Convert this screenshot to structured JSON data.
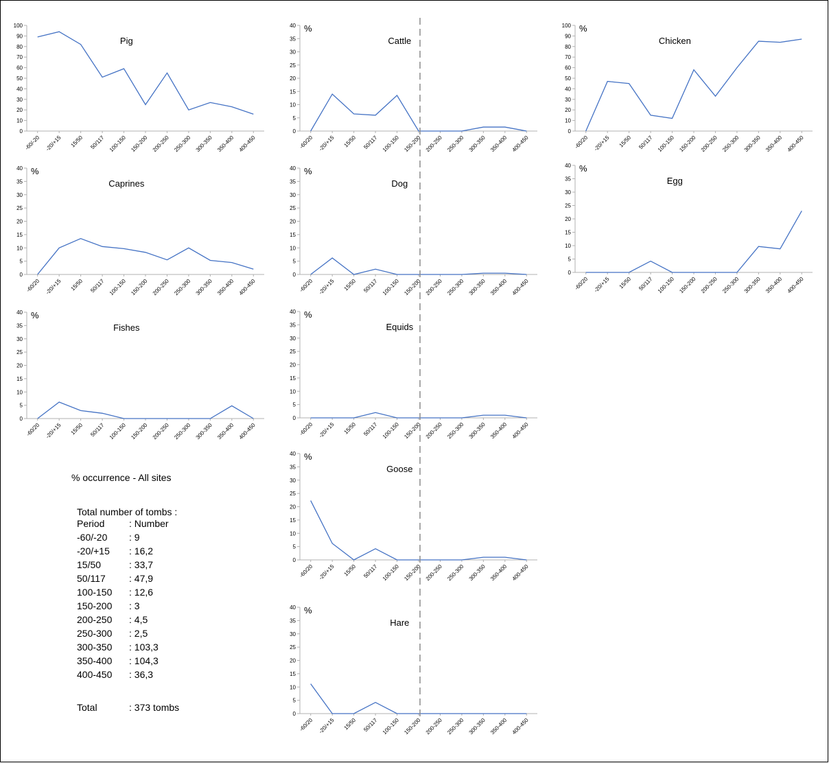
{
  "chart_data": [
    {
      "type": "line",
      "title": "Pig",
      "unit": "",
      "categories": [
        "-60/-20",
        "-20/+15",
        "15/50",
        "50/117",
        "100-150",
        "150-200",
        "200-250",
        "250-300",
        "300-350",
        "350-400",
        "400-450"
      ],
      "values": [
        89,
        94,
        82,
        51,
        59,
        25,
        55,
        20,
        27,
        23,
        16
      ],
      "ylim": [
        0,
        100
      ],
      "yticks": [
        0,
        10,
        20,
        30,
        40,
        50,
        60,
        70,
        80,
        90,
        100
      ]
    },
    {
      "type": "line",
      "title": "Cattle",
      "unit": "%",
      "categories": [
        "-60/20",
        "-20/+15",
        "15/50",
        "50/117",
        "100-150",
        "150-200",
        "200-250",
        "250-300",
        "300-350",
        "350-400",
        "400-450"
      ],
      "values": [
        0,
        14,
        6.5,
        6,
        13.5,
        0,
        0,
        0,
        1.5,
        1.5,
        0
      ],
      "ylim": [
        0,
        40
      ],
      "yticks": [
        0,
        5,
        10,
        15,
        20,
        25,
        30,
        35,
        40
      ]
    },
    {
      "type": "line",
      "title": "Chicken",
      "unit": "%",
      "categories": [
        "-60/20",
        "-20/+15",
        "15/50",
        "50/117",
        "100-150",
        "150-200",
        "200-250",
        "250-300",
        "300-350",
        "350-400",
        "400-450"
      ],
      "values": [
        0,
        47,
        45,
        15,
        12,
        58,
        33,
        60,
        85,
        84,
        87
      ],
      "ylim": [
        0,
        100
      ],
      "yticks": [
        0,
        10,
        20,
        30,
        40,
        50,
        60,
        70,
        80,
        90,
        100
      ]
    },
    {
      "type": "line",
      "title": "Caprines",
      "unit": "%",
      "categories": [
        "-60/20",
        "-20/+15",
        "15/50",
        "50/117",
        "100-150",
        "150-200",
        "200-250",
        "250-300",
        "300-350",
        "350-400",
        "400-450"
      ],
      "values": [
        0,
        10,
        13.5,
        10.5,
        9.7,
        8.3,
        5.5,
        10,
        5.3,
        4.5,
        2
      ],
      "ylim": [
        0,
        40
      ],
      "yticks": [
        0,
        5,
        10,
        15,
        20,
        25,
        30,
        35,
        40
      ]
    },
    {
      "type": "line",
      "title": "Dog",
      "unit": "%",
      "categories": [
        "-60/20",
        "-20/+15",
        "15/50",
        "50/117",
        "100-150",
        "150-200",
        "200-250",
        "250-300",
        "300-350",
        "350-400",
        "400-450"
      ],
      "values": [
        0,
        6.2,
        0,
        2,
        0,
        0,
        0,
        0,
        0.5,
        0.5,
        0
      ],
      "ylim": [
        0,
        40
      ],
      "yticks": [
        0,
        5,
        10,
        15,
        20,
        25,
        30,
        35,
        40
      ]
    },
    {
      "type": "line",
      "title": "Egg",
      "unit": "%",
      "categories": [
        "-60/20",
        "-20/+15",
        "15/50",
        "50/117",
        "100-150",
        "150-200",
        "200-250",
        "250-300",
        "300-350",
        "350-400",
        "400-450"
      ],
      "values": [
        0,
        0,
        0,
        4.2,
        0,
        0,
        0,
        0,
        9.7,
        8.8,
        23
      ],
      "ylim": [
        0,
        40
      ],
      "yticks": [
        0,
        5,
        10,
        15,
        20,
        25,
        30,
        35,
        40
      ]
    },
    {
      "type": "line",
      "title": "Fishes",
      "unit": "%",
      "categories": [
        "-60/20",
        "-20/+15",
        "15/50",
        "50/117",
        "100-150",
        "150-200",
        "200-250",
        "250-300",
        "300-350",
        "350-400",
        "400-450"
      ],
      "values": [
        0,
        6.2,
        3,
        2,
        0,
        0,
        0,
        0,
        0,
        4.8,
        0
      ],
      "ylim": [
        0,
        40
      ],
      "yticks": [
        0,
        5,
        10,
        15,
        20,
        25,
        30,
        35,
        40
      ]
    },
    {
      "type": "line",
      "title": "Equids",
      "unit": "%",
      "categories": [
        "-60/20",
        "-20/+15",
        "15/50",
        "50/117",
        "100-150",
        "150-200",
        "200-250",
        "250-300",
        "300-350",
        "350-400",
        "400-450"
      ],
      "values": [
        0,
        0,
        0,
        2,
        0,
        0,
        0,
        0,
        1,
        1,
        0
      ],
      "ylim": [
        0,
        40
      ],
      "yticks": [
        0,
        5,
        10,
        15,
        20,
        25,
        30,
        35,
        40
      ]
    },
    {
      "type": "line",
      "title": "Goose",
      "unit": "%",
      "categories": [
        "-60/20",
        "-20/+15",
        "15/50",
        "50/117",
        "100-150",
        "150-200",
        "200-250",
        "250-300",
        "300-350",
        "350-400",
        "400-450"
      ],
      "values": [
        22.3,
        6.2,
        0,
        4.2,
        0,
        0,
        0,
        0,
        1,
        1,
        0
      ],
      "ylim": [
        0,
        40
      ],
      "yticks": [
        0,
        5,
        10,
        15,
        20,
        25,
        30,
        35,
        40
      ]
    },
    {
      "type": "line",
      "title": "Hare",
      "unit": "%",
      "categories": [
        "-60/20",
        "-20/+15",
        "15/50",
        "50/117",
        "100-150",
        "150-200",
        "200-250",
        "250-300",
        "300-350",
        "350-400",
        "400-450"
      ],
      "values": [
        11.2,
        0,
        0,
        4.2,
        0,
        0,
        0,
        0,
        0,
        0,
        0
      ],
      "ylim": [
        0,
        40
      ],
      "yticks": [
        0,
        5,
        10,
        15,
        20,
        25,
        30,
        35,
        40
      ]
    }
  ],
  "legend": {
    "title": "% occurrence - All sites",
    "total_label": "Total number of tombs :",
    "rows": [
      {
        "period": "Period",
        "number": ": Number"
      },
      {
        "period": "-60/-20",
        "number": ": 9"
      },
      {
        "period": "-20/+15",
        "number": ": 16,2"
      },
      {
        "period": "15/50",
        "number": ":  33,7"
      },
      {
        "period": "50/117",
        "number": ": 47,9"
      },
      {
        "period": "100-150",
        "number": ": 12,6"
      },
      {
        "period": "150-200",
        "number": ": 3"
      },
      {
        "period": "200-250",
        "number": ": 4,5"
      },
      {
        "period": "250-300",
        "number": ": 2,5"
      },
      {
        "period": "300-350",
        "number": ": 103,3"
      },
      {
        "period": "350-400",
        "number": ": 104,3"
      },
      {
        "period": "400-450",
        "number": ": 36,3"
      }
    ],
    "total": {
      "period": "Total",
      "number": ": 373 tombs"
    }
  },
  "colors": {
    "series": "#4472c4",
    "axis": "#b0b0b0",
    "divider": "#8c8c8c"
  }
}
